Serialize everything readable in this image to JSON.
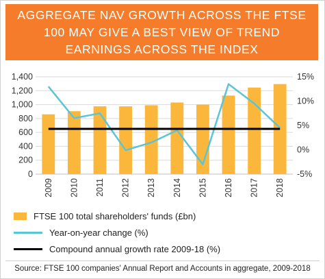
{
  "banner": {
    "title": "AGGREGATE NAV GROWTH ACROSS THE FTSE 100 MAY GIVE A BEST VIEW OF TREND EARNINGS ACROSS THE INDEX"
  },
  "chart_data": {
    "type": "bar",
    "categories": [
      "2009",
      "2010",
      "2011",
      "2012",
      "2013",
      "2014",
      "2015",
      "2016",
      "2017",
      "2018"
    ],
    "series": [
      {
        "name": "FTSE 100 total shareholders' funds (£bn)",
        "kind": "bar",
        "axis": "left",
        "color": "#fbb73c",
        "values": [
          860,
          905,
          975,
          975,
          990,
          1030,
          1000,
          1130,
          1245,
          1295
        ]
      },
      {
        "name": "Year-on-year change (%)",
        "kind": "line",
        "axis": "right",
        "color": "#5bc4d6",
        "values": [
          13.0,
          6.5,
          7.5,
          -0.1,
          1.5,
          4.0,
          -3.0,
          13.5,
          9.5,
          4.5
        ]
      },
      {
        "name": "Compound annual growth rate 2009-18 (%)",
        "kind": "line",
        "axis": "right",
        "color": "#000000",
        "values": [
          4.3,
          4.3,
          4.3,
          4.3,
          4.3,
          4.3,
          4.3,
          4.3,
          4.3,
          4.3
        ]
      }
    ],
    "y_left": {
      "min": 0,
      "max": 1400,
      "ticks": [
        0,
        200,
        400,
        600,
        800,
        1000,
        1200,
        1400
      ],
      "tick_labels": [
        "0",
        "200",
        "400",
        "600",
        "800",
        "1,000",
        "1,200",
        "1,400"
      ]
    },
    "y_right": {
      "min": -5,
      "max": 15,
      "ticks": [
        -5,
        0,
        5,
        10,
        15
      ],
      "tick_labels": [
        "-5%",
        "0%",
        "5%",
        "10%",
        "15%"
      ]
    },
    "grid": true,
    "legend_position": "bottom"
  },
  "legend": [
    {
      "label": "FTSE 100 total shareholders' funds (£bn)",
      "style": "bar",
      "color": "#fbb73c"
    },
    {
      "label": "Year-on-year change (%)",
      "style": "line",
      "color": "#5bc4d6"
    },
    {
      "label": "Compound annual growth rate 2009-18 (%)",
      "style": "line",
      "color": "#000000"
    }
  ],
  "source": "Source: FTSE 100 companies' Annual Report and Accounts in aggregate, 2009-2018"
}
